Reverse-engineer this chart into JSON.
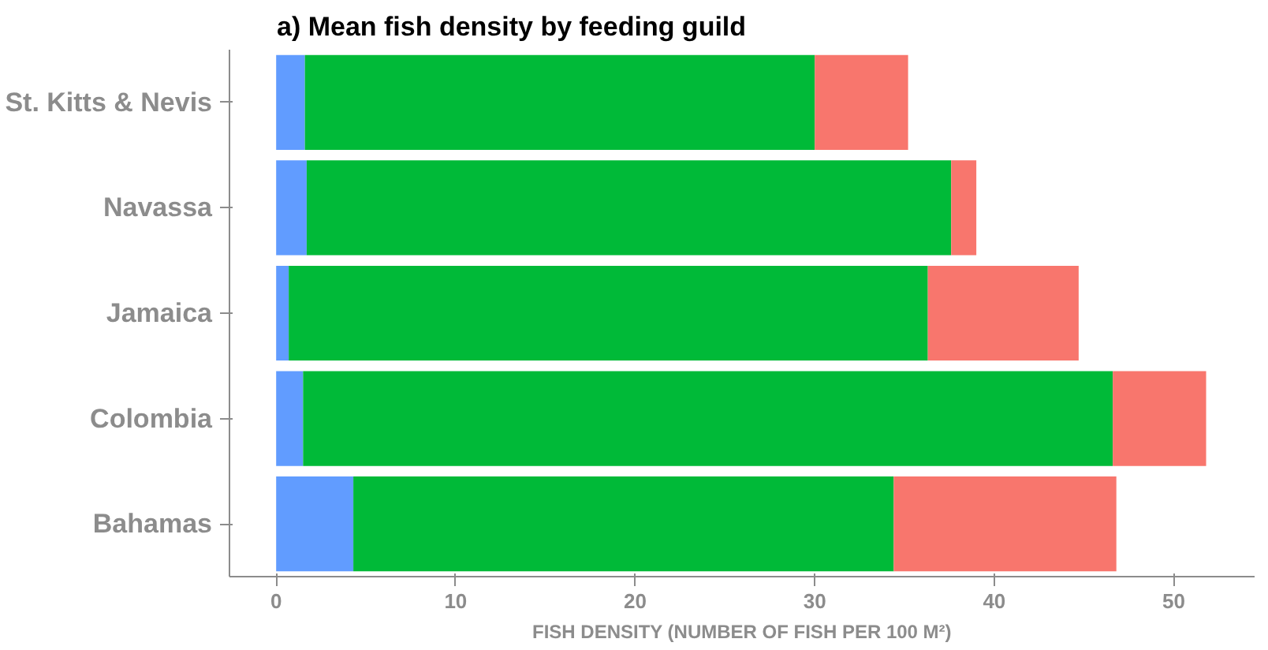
{
  "chart_data": {
    "type": "bar",
    "title": "a) Mean fish density by feeding guild",
    "xlabel": "FISH DENSITY (NUMBER OF FISH PER 100 M²)",
    "orientation": "horizontal",
    "stacked": true,
    "categories": [
      "St. Kitts & Nevis",
      "Navassa",
      "Jamaica",
      "Colombia",
      "Bahamas"
    ],
    "series": [
      {
        "color": "#619cff",
        "values": [
          1.6,
          1.7,
          0.7,
          1.5,
          4.3
        ]
      },
      {
        "color": "#00ba38",
        "values": [
          28.4,
          35.9,
          35.6,
          45.1,
          30.1
        ]
      },
      {
        "color": "#f8766d",
        "values": [
          5.2,
          1.4,
          8.4,
          5.2,
          12.4
        ]
      }
    ],
    "xlim": [
      -2.6,
      54.5
    ],
    "xticks": [
      0,
      10,
      20,
      30,
      40,
      50
    ],
    "grid": false
  }
}
